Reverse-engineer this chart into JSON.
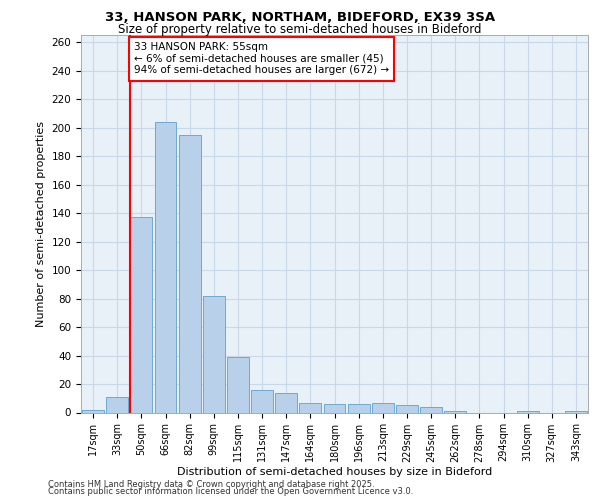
{
  "title1": "33, HANSON PARK, NORTHAM, BIDEFORD, EX39 3SA",
  "title2": "Size of property relative to semi-detached houses in Bideford",
  "xlabel": "Distribution of semi-detached houses by size in Bideford",
  "ylabel": "Number of semi-detached properties",
  "categories": [
    "17sqm",
    "33sqm",
    "50sqm",
    "66sqm",
    "82sqm",
    "99sqm",
    "115sqm",
    "131sqm",
    "147sqm",
    "164sqm",
    "180sqm",
    "196sqm",
    "213sqm",
    "229sqm",
    "245sqm",
    "262sqm",
    "278sqm",
    "294sqm",
    "310sqm",
    "327sqm",
    "343sqm"
  ],
  "values": [
    2,
    11,
    137,
    204,
    195,
    82,
    39,
    16,
    14,
    7,
    6,
    6,
    7,
    5,
    4,
    1,
    0,
    0,
    1,
    0,
    1
  ],
  "bar_color": "#b8d0ea",
  "bar_edge_color": "#6aaad4",
  "grid_color": "#c8d8e8",
  "background_color": "#e8f0f8",
  "red_line_index": 2,
  "annotation_title": "33 HANSON PARK: 55sqm",
  "annotation_line1": "← 6% of semi-detached houses are smaller (45)",
  "annotation_line2": "94% of semi-detached houses are larger (672) →",
  "footnote1": "Contains HM Land Registry data © Crown copyright and database right 2025.",
  "footnote2": "Contains public sector information licensed under the Open Government Licence v3.0.",
  "ylim": [
    0,
    265
  ],
  "yticks": [
    0,
    20,
    40,
    60,
    80,
    100,
    120,
    140,
    160,
    180,
    200,
    220,
    240,
    260
  ]
}
